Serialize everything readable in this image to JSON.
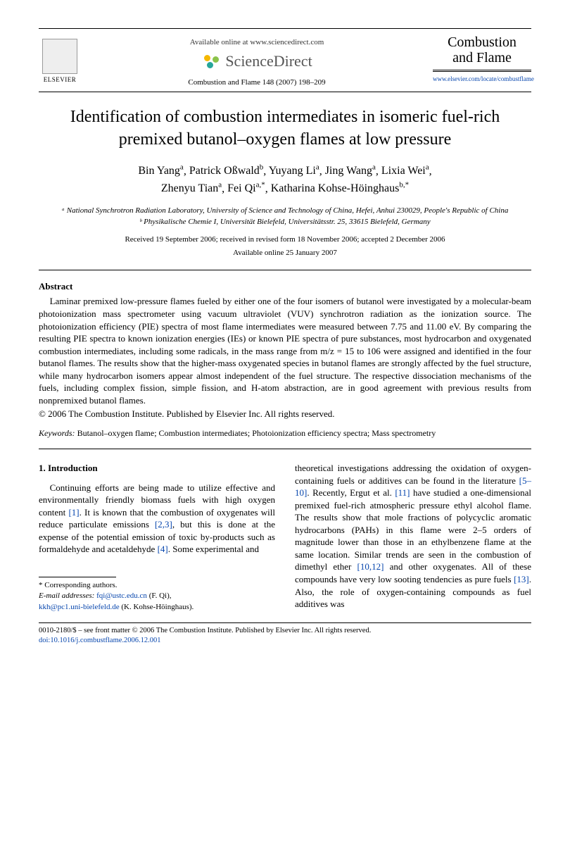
{
  "header": {
    "elsevier": "ELSEVIER",
    "available_online": "Available online at www.sciencedirect.com",
    "sciencedirect": "ScienceDirect",
    "citation": "Combustion and Flame 148 (2007) 198–209",
    "journal_title_l1": "Combustion",
    "journal_title_l2": "and Flame",
    "journal_url": "www.elsevier.com/locate/combustflame"
  },
  "title": "Identification of combustion intermediates in isomeric fuel-rich premixed butanol–oxygen flames at low pressure",
  "authors_html": "Bin Yang ᵃ, Patrick Oßwald ᵇ, Yuyang Li ᵃ, Jing Wang ᵃ, Lixia Wei ᵃ, Zhenyu Tian ᵃ, Fei Qi ᵃ·*, Katharina Kohse-Höinghaus ᵇ·*",
  "authors": {
    "line1_names": [
      "Bin Yang",
      "Patrick Oßwald",
      "Yuyang Li",
      "Jing Wang",
      "Lixia Wei"
    ],
    "line1_sups": [
      "a",
      "b",
      "a",
      "a",
      "a"
    ],
    "line2_names": [
      "Zhenyu Tian",
      "Fei Qi",
      "Katharina Kohse-Höinghaus"
    ],
    "line2_sups": [
      "a",
      "a,*",
      "b,*"
    ]
  },
  "affiliations": {
    "a": "ᵃ National Synchrotron Radiation Laboratory, University of Science and Technology of China, Hefei, Anhui 230029, People's Republic of China",
    "b": "ᵇ Physikalische Chemie I, Universität Bielefeld, Universitätsstr. 25, 33615 Bielefeld, Germany"
  },
  "dates": {
    "received": "Received 19 September 2006; received in revised form 18 November 2006; accepted 2 December 2006",
    "available": "Available online 25 January 2007"
  },
  "abstract": {
    "heading": "Abstract",
    "body": "Laminar premixed low-pressure flames fueled by either one of the four isomers of butanol were investigated by a molecular-beam photoionization mass spectrometer using vacuum ultraviolet (VUV) synchrotron radiation as the ionization source. The photoionization efficiency (PIE) spectra of most flame intermediates were measured between 7.75 and 11.00 eV. By comparing the resulting PIE spectra to known ionization energies (IEs) or known PIE spectra of pure substances, most hydrocarbon and oxygenated combustion intermediates, including some radicals, in the mass range from m/z = 15 to 106 were assigned and identified in the four butanol flames. The results show that the higher-mass oxygenated species in butanol flames are strongly affected by the fuel structure, while many hydrocarbon isomers appear almost independent of the fuel structure. The respective dissociation mechanisms of the fuels, including complex fission, simple fission, and H-atom abstraction, are in good agreement with previous results from nonpremixed butanol flames.",
    "copyright": "© 2006 The Combustion Institute. Published by Elsevier Inc. All rights reserved."
  },
  "keywords": {
    "label": "Keywords:",
    "text": " Butanol–oxygen flame; Combustion intermediates; Photoionization efficiency spectra; Mass spectrometry"
  },
  "body": {
    "section_heading": "1. Introduction",
    "col1_p1_a": "Continuing efforts are being made to utilize effective and environmentally friendly biomass fuels with high oxygen content ",
    "col1_ref1": "[1]",
    "col1_p1_b": ". It is known that the combustion of oxygenates will reduce particulate emissions ",
    "col1_ref2": "[2,3]",
    "col1_p1_c": ", but this is done at the expense of the potential emission of toxic by-products such as formaldehyde and acetaldehyde ",
    "col1_ref3": "[4]",
    "col1_p1_d": ". Some experimental and",
    "col2_a": "theoretical investigations addressing the oxidation of oxygen-containing fuels or additives can be found in the literature ",
    "col2_ref1": "[5–10]",
    "col2_b": ". Recently, Ergut et al. ",
    "col2_ref2": "[11]",
    "col2_c": " have studied a one-dimensional premixed fuel-rich atmospheric pressure ethyl alcohol flame. The results show that mole fractions of polycyclic aromatic hydrocarbons (PAHs) in this flame were 2–5 orders of magnitude lower than those in an ethylbenzene flame at the same location. Similar trends are seen in the combustion of dimethyl ether ",
    "col2_ref3": "[10,12]",
    "col2_d": " and other oxygenates. All of these compounds have very low sooting tendencies as pure fuels ",
    "col2_ref4": "[13]",
    "col2_e": ". Also, the role of oxygen-containing compounds as fuel additives was"
  },
  "footnote": {
    "corresponding": "* Corresponding authors.",
    "email_label": "E-mail addresses:",
    "email1": "fqi@ustc.edu.cn",
    "email1_name": "(F. Qi),",
    "email2": "kkh@pc1.uni-bielefeld.de",
    "email2_name": "(K. Kohse-Höinghaus)."
  },
  "bottom": {
    "line1": "0010-2180/$ – see front matter  © 2006 The Combustion Institute. Published by Elsevier Inc. All rights reserved.",
    "doi": "doi:10.1016/j.combustflame.2006.12.001"
  }
}
